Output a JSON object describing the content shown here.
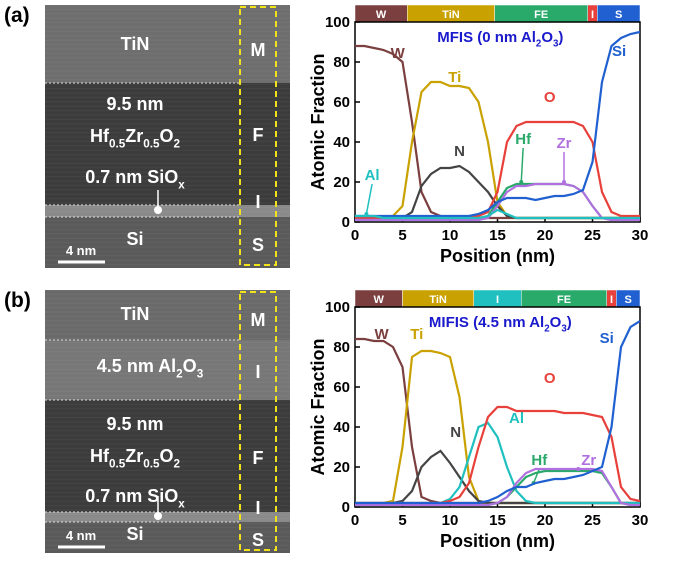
{
  "tem_panels": [
    {
      "panel_label": "(a)",
      "scale_bar": "4 nm",
      "column_labels": [
        "M",
        "F",
        "I",
        "S"
      ],
      "layer_texts": [
        [
          "TiN"
        ],
        [
          "9.5 nm"
        ],
        [
          "Hf",
          "0.5",
          "Zr",
          "0.5",
          "O",
          "2"
        ],
        [
          "0.7 nm SiO",
          "x"
        ],
        [
          "Si"
        ]
      ]
    },
    {
      "panel_label": "(b)",
      "scale_bar": "4 nm",
      "column_labels": [
        "M",
        "I",
        "F",
        "I",
        "S"
      ],
      "layer_texts": [
        [
          "TiN"
        ],
        [
          "4.5 nm Al",
          "2",
          "O",
          "3"
        ],
        [
          "9.5 nm"
        ],
        [
          "Hf",
          "0.5",
          "Zr",
          "0.5",
          "O",
          "2"
        ],
        [
          "0.7 nm SiO",
          "x"
        ],
        [
          "Si"
        ]
      ]
    }
  ],
  "chart_data": [
    {
      "type": "line",
      "title": [
        "MFIS (0 nm Al",
        "2",
        "O",
        "3",
        ")"
      ],
      "xlabel": "Position (nm)",
      "ylabel": "Atomic Fraction",
      "xlim": [
        0,
        30
      ],
      "ylim": [
        0,
        100
      ],
      "xticks": [
        0,
        5,
        10,
        15,
        20,
        25,
        30
      ],
      "yticks": [
        0,
        20,
        40,
        60,
        80,
        100
      ],
      "bands": [
        {
          "label": "W",
          "start": 0,
          "end": 5.5,
          "color": "#7b3f3f"
        },
        {
          "label": "TiN",
          "start": 5.5,
          "end": 14.7,
          "color": "#c9a100"
        },
        {
          "label": "FE",
          "start": 14.7,
          "end": 24.5,
          "color": "#2aaa6a"
        },
        {
          "label": "I",
          "start": 24.5,
          "end": 25.5,
          "color": "#e8403a"
        },
        {
          "label": "S",
          "start": 25.5,
          "end": 30,
          "color": "#2060d0"
        }
      ],
      "x": [
        0,
        1,
        2,
        3,
        4,
        5,
        6,
        7,
        8,
        9,
        10,
        11,
        12,
        13,
        14,
        15,
        16,
        17,
        18,
        19,
        20,
        21,
        22,
        23,
        24,
        25,
        26,
        27,
        28,
        29,
        30
      ],
      "series": [
        {
          "name": "W",
          "color": "#7b3f3f",
          "values": [
            88,
            88,
            87,
            86,
            84,
            80,
            50,
            15,
            5,
            3,
            2,
            2,
            2,
            2,
            2,
            2,
            2,
            2,
            2,
            2,
            2,
            2,
            2,
            2,
            2,
            2,
            2,
            2,
            2,
            2,
            2
          ]
        },
        {
          "name": "Ti",
          "color": "#c9a100",
          "values": [
            2,
            2,
            2,
            2,
            3,
            8,
            40,
            65,
            70,
            70,
            68,
            68,
            67,
            60,
            40,
            10,
            3,
            2,
            2,
            2,
            2,
            2,
            2,
            2,
            2,
            2,
            2,
            2,
            2,
            2,
            2
          ]
        },
        {
          "name": "N",
          "color": "#444444",
          "values": [
            1,
            1,
            1,
            1,
            1,
            2,
            5,
            18,
            24,
            27,
            27,
            28,
            25,
            20,
            15,
            8,
            3,
            2,
            2,
            2,
            2,
            2,
            2,
            2,
            2,
            2,
            2,
            2,
            2,
            2,
            2
          ]
        },
        {
          "name": "O",
          "color": "#e8403a",
          "values": [
            2,
            2,
            2,
            2,
            2,
            2,
            2,
            2,
            2,
            2,
            2,
            2,
            2,
            3,
            5,
            15,
            40,
            48,
            50,
            50,
            50,
            50,
            50,
            50,
            48,
            40,
            15,
            5,
            3,
            3,
            3
          ]
        },
        {
          "name": "Hf",
          "color": "#2aaa6a",
          "values": [
            1,
            1,
            1,
            1,
            1,
            1,
            1,
            1,
            1,
            1,
            1,
            1,
            1,
            1,
            3,
            10,
            17,
            19,
            19,
            19,
            19,
            19,
            19,
            18,
            15,
            8,
            2,
            1,
            1,
            1,
            1
          ]
        },
        {
          "name": "Zr",
          "color": "#b070e0",
          "values": [
            1,
            1,
            1,
            1,
            1,
            1,
            1,
            1,
            1,
            1,
            1,
            1,
            1,
            1,
            2,
            8,
            15,
            18,
            18,
            19,
            19,
            19,
            19,
            18,
            15,
            8,
            2,
            1,
            1,
            1,
            1
          ]
        },
        {
          "name": "Si",
          "color": "#2060d0",
          "values": [
            3,
            3,
            3,
            3,
            3,
            3,
            3,
            3,
            3,
            3,
            3,
            3,
            3,
            4,
            6,
            10,
            12,
            12,
            12,
            11,
            12,
            13,
            13,
            14,
            16,
            30,
            70,
            88,
            92,
            94,
            95
          ]
        },
        {
          "name": "Al",
          "color": "#20c0c0",
          "values": [
            3,
            3,
            3,
            2,
            2,
            2,
            2,
            2,
            2,
            2,
            2,
            2,
            2,
            2,
            3,
            6,
            4,
            2,
            2,
            2,
            2,
            2,
            2,
            2,
            2,
            2,
            2,
            2,
            2,
            2,
            2
          ]
        }
      ]
    },
    {
      "type": "line",
      "title": [
        "MIFIS (4.5 nm Al",
        "2",
        "O",
        "3",
        ")"
      ],
      "xlabel": "Position (nm)",
      "ylabel": "Atomic Fraction",
      "xlim": [
        0,
        30
      ],
      "ylim": [
        0,
        100
      ],
      "xticks": [
        0,
        5,
        10,
        15,
        20,
        25,
        30
      ],
      "yticks": [
        0,
        20,
        40,
        60,
        80,
        100
      ],
      "bands": [
        {
          "label": "W",
          "start": 0,
          "end": 5,
          "color": "#7b3f3f"
        },
        {
          "label": "TiN",
          "start": 5,
          "end": 12.5,
          "color": "#c9a100"
        },
        {
          "label": "I",
          "start": 12.5,
          "end": 17.5,
          "color": "#20c0c0"
        },
        {
          "label": "FE",
          "start": 17.5,
          "end": 26.5,
          "color": "#2aaa6a"
        },
        {
          "label": "I",
          "start": 26.5,
          "end": 27.5,
          "color": "#e8403a"
        },
        {
          "label": "S",
          "start": 27.5,
          "end": 30,
          "color": "#2060d0"
        }
      ],
      "x": [
        0,
        1,
        2,
        3,
        4,
        5,
        6,
        7,
        8,
        9,
        10,
        11,
        12,
        13,
        14,
        15,
        16,
        17,
        18,
        19,
        20,
        21,
        22,
        23,
        24,
        25,
        26,
        27,
        28,
        29,
        30
      ],
      "series": [
        {
          "name": "W",
          "color": "#7b3f3f",
          "values": [
            84,
            84,
            83,
            83,
            80,
            70,
            30,
            5,
            3,
            2,
            2,
            2,
            2,
            2,
            2,
            2,
            2,
            2,
            2,
            2,
            2,
            2,
            2,
            2,
            2,
            2,
            2,
            2,
            2,
            2,
            2
          ]
        },
        {
          "name": "Ti",
          "color": "#c9a100",
          "values": [
            2,
            2,
            2,
            2,
            3,
            30,
            75,
            78,
            78,
            77,
            75,
            55,
            15,
            3,
            2,
            2,
            2,
            2,
            2,
            2,
            2,
            2,
            2,
            2,
            2,
            2,
            2,
            2,
            2,
            2,
            2
          ]
        },
        {
          "name": "N",
          "color": "#444444",
          "values": [
            1,
            1,
            1,
            1,
            2,
            3,
            8,
            20,
            25,
            28,
            22,
            15,
            8,
            3,
            2,
            2,
            2,
            2,
            2,
            2,
            2,
            2,
            2,
            2,
            2,
            2,
            2,
            2,
            2,
            2,
            2
          ]
        },
        {
          "name": "Al",
          "color": "#20c0c0",
          "values": [
            2,
            2,
            2,
            2,
            2,
            2,
            2,
            2,
            2,
            2,
            4,
            10,
            25,
            40,
            42,
            35,
            20,
            8,
            3,
            2,
            2,
            2,
            2,
            2,
            2,
            2,
            2,
            2,
            2,
            2,
            2
          ]
        },
        {
          "name": "O",
          "color": "#e8403a",
          "values": [
            2,
            2,
            2,
            2,
            2,
            2,
            2,
            2,
            2,
            2,
            3,
            5,
            12,
            30,
            45,
            50,
            50,
            48,
            48,
            48,
            48,
            48,
            47,
            47,
            47,
            46,
            45,
            35,
            10,
            4,
            3
          ]
        },
        {
          "name": "Hf",
          "color": "#2aaa6a",
          "values": [
            1,
            1,
            1,
            1,
            1,
            1,
            1,
            1,
            1,
            1,
            1,
            1,
            1,
            1,
            1,
            2,
            5,
            10,
            15,
            17,
            18,
            18,
            18,
            18,
            18,
            18,
            17,
            10,
            2,
            1,
            1
          ]
        },
        {
          "name": "Zr",
          "color": "#b070e0",
          "values": [
            1,
            1,
            1,
            1,
            1,
            1,
            1,
            1,
            1,
            1,
            1,
            1,
            1,
            1,
            1,
            2,
            5,
            12,
            17,
            19,
            19,
            19,
            19,
            19,
            19,
            19,
            18,
            10,
            2,
            1,
            1
          ]
        },
        {
          "name": "Si",
          "color": "#2060d0",
          "values": [
            2,
            2,
            2,
            2,
            2,
            2,
            2,
            2,
            2,
            2,
            2,
            2,
            2,
            2,
            3,
            5,
            8,
            10,
            10,
            12,
            13,
            14,
            14,
            15,
            16,
            18,
            20,
            40,
            80,
            90,
            93
          ]
        }
      ]
    }
  ]
}
